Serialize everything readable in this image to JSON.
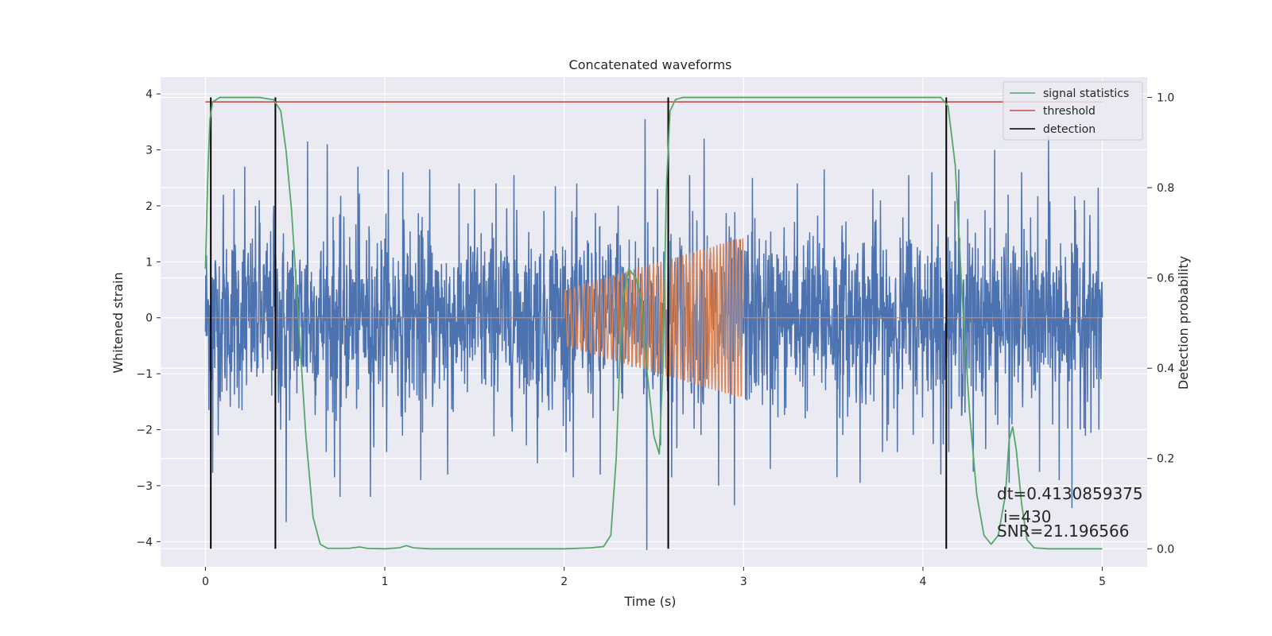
{
  "chart_data": {
    "type": "line",
    "title": "Concatenated waveforms",
    "xlabel": "Time (s)",
    "ylabel": "Whitened strain",
    "y2label": "Detection probability",
    "xlim": [
      -0.25,
      5.25
    ],
    "ylim": [
      -4.45,
      4.3
    ],
    "y2lim": [
      -0.04,
      1.045
    ],
    "x_ticks": [
      "0",
      "1",
      "2",
      "3",
      "4",
      "5"
    ],
    "x_tick_values": [
      0,
      1,
      2,
      3,
      4,
      5
    ],
    "y_ticks": [
      "−4",
      "−3",
      "−2",
      "−1",
      "0",
      "1",
      "2",
      "3",
      "4"
    ],
    "y_tick_values": [
      -4,
      -3,
      -2,
      -1,
      0,
      1,
      2,
      3,
      4
    ],
    "y2_ticks": [
      "0.0",
      "0.2",
      "0.4",
      "0.6",
      "0.8",
      "1.0"
    ],
    "y2_tick_values": [
      0.0,
      0.2,
      0.4,
      0.6,
      0.8,
      1.0
    ],
    "grid": true,
    "legend_position": "top-right",
    "legend": [
      "signal statistics",
      "threshold",
      "detection"
    ],
    "colors": {
      "strain": "#4c72b0",
      "template": "#dd8452",
      "signal_statistics": "#55a868",
      "threshold": "#c44e52",
      "detection": "#000000",
      "background": "#eaeaf2",
      "grid": "#ffffff"
    },
    "strain": {
      "t_start": 0,
      "t_end": 5,
      "sigma": 0.8,
      "spikes": [
        [
          0.04,
          -2.77
        ],
        [
          0.1,
          2.2
        ],
        [
          0.16,
          2.3
        ],
        [
          0.22,
          2.7
        ],
        [
          0.3,
          2.1
        ],
        [
          0.38,
          2.0
        ],
        [
          0.42,
          -2.0
        ],
        [
          0.45,
          -3.65
        ],
        [
          0.57,
          3.15
        ],
        [
          0.68,
          3.1
        ],
        [
          0.72,
          -2.85
        ],
        [
          0.75,
          -3.2
        ],
        [
          0.85,
          2.7
        ],
        [
          0.92,
          -3.2
        ],
        [
          1.02,
          2.65
        ],
        [
          1.1,
          2.6
        ],
        [
          1.2,
          -2.9
        ],
        [
          1.25,
          2.65
        ],
        [
          1.35,
          -2.8
        ],
        [
          1.5,
          2.3
        ],
        [
          1.62,
          2.4
        ],
        [
          1.72,
          2.55
        ],
        [
          1.85,
          -2.6
        ],
        [
          1.95,
          2.35
        ],
        [
          2.05,
          -2.85
        ],
        [
          2.2,
          -2.8
        ],
        [
          2.3,
          2.0
        ],
        [
          2.45,
          3.55
        ],
        [
          2.46,
          -4.15
        ],
        [
          2.52,
          2.3
        ],
        [
          2.6,
          -2.85
        ],
        [
          2.7,
          2.55
        ],
        [
          2.78,
          3.2
        ],
        [
          2.86,
          -3.0
        ],
        [
          2.95,
          -3.35
        ],
        [
          3.05,
          2.5
        ],
        [
          3.15,
          -2.7
        ],
        [
          3.3,
          2.4
        ],
        [
          3.45,
          2.65
        ],
        [
          3.52,
          -2.85
        ],
        [
          3.65,
          -2.95
        ],
        [
          3.72,
          2.3
        ],
        [
          3.8,
          -2.2
        ],
        [
          3.92,
          2.55
        ],
        [
          4.05,
          2.6
        ],
        [
          4.1,
          -2.8
        ],
        [
          4.2,
          2.65
        ],
        [
          4.28,
          -2.75
        ],
        [
          4.4,
          3.0
        ],
        [
          4.48,
          -2.95
        ],
        [
          4.55,
          2.6
        ],
        [
          4.65,
          -2.75
        ],
        [
          4.7,
          3.25
        ],
        [
          4.76,
          -2.9
        ],
        [
          4.83,
          -3.4
        ],
        [
          4.9,
          2.1
        ],
        [
          4.98,
          -2.0
        ]
      ]
    },
    "template": {
      "t_start": 2.0,
      "t_end": 3.0,
      "amp_start": 0.5,
      "amp_end": 1.45,
      "cycles": 38
    },
    "signal_statistics": [
      [
        0,
        0.62
      ],
      [
        0.005,
        0.7
      ],
      [
        0.015,
        0.85
      ],
      [
        0.025,
        0.95
      ],
      [
        0.04,
        0.99
      ],
      [
        0.08,
        1.0
      ],
      [
        0.3,
        1.0
      ],
      [
        0.38,
        0.995
      ],
      [
        0.42,
        0.97
      ],
      [
        0.45,
        0.88
      ],
      [
        0.48,
        0.75
      ],
      [
        0.52,
        0.5
      ],
      [
        0.56,
        0.25
      ],
      [
        0.6,
        0.07
      ],
      [
        0.64,
        0.01
      ],
      [
        0.68,
        0.001
      ],
      [
        0.8,
        0.001
      ],
      [
        0.86,
        0.004
      ],
      [
        0.9,
        0.001
      ],
      [
        1.0,
        0.0
      ],
      [
        1.08,
        0.002
      ],
      [
        1.12,
        0.007
      ],
      [
        1.16,
        0.002
      ],
      [
        1.25,
        0.0
      ],
      [
        2.0,
        0.0
      ],
      [
        2.15,
        0.002
      ],
      [
        2.22,
        0.005
      ],
      [
        2.26,
        0.03
      ],
      [
        2.29,
        0.2
      ],
      [
        2.31,
        0.42
      ],
      [
        2.33,
        0.56
      ],
      [
        2.36,
        0.62
      ],
      [
        2.4,
        0.6
      ],
      [
        2.43,
        0.55
      ],
      [
        2.46,
        0.4
      ],
      [
        2.5,
        0.25
      ],
      [
        2.53,
        0.21
      ],
      [
        2.55,
        0.4
      ],
      [
        2.57,
        0.8
      ],
      [
        2.59,
        0.97
      ],
      [
        2.62,
        0.995
      ],
      [
        2.66,
        1.0
      ],
      [
        4.1,
        1.0
      ],
      [
        4.14,
        0.98
      ],
      [
        4.18,
        0.85
      ],
      [
        4.22,
        0.55
      ],
      [
        4.26,
        0.3
      ],
      [
        4.3,
        0.12
      ],
      [
        4.34,
        0.03
      ],
      [
        4.38,
        0.01
      ],
      [
        4.42,
        0.03
      ],
      [
        4.46,
        0.12
      ],
      [
        4.48,
        0.24
      ],
      [
        4.5,
        0.27
      ],
      [
        4.52,
        0.22
      ],
      [
        4.55,
        0.1
      ],
      [
        4.58,
        0.02
      ],
      [
        4.62,
        0.002
      ],
      [
        4.7,
        0.0
      ],
      [
        5.0,
        0.0
      ]
    ],
    "threshold": {
      "value": 0.99,
      "t_start": 0,
      "t_end": 5
    },
    "detections": [
      0.03,
      0.39,
      2.58,
      4.13
    ],
    "annotations": [
      "dt=0.4130859375",
      "i=430",
      "SNR=21.196566"
    ]
  }
}
